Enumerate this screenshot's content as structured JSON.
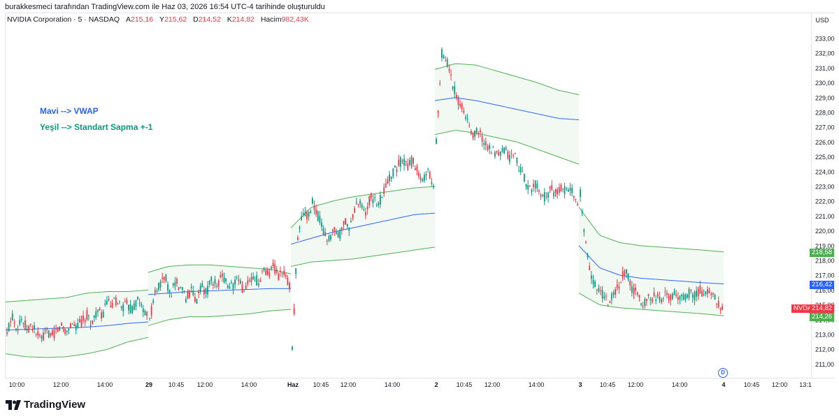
{
  "caption": "burakkesmeci tarafından TradingView.com ile Haz 03, 2026 16:54 UTC-4 tarihinde oluşturuldu",
  "legend": {
    "symbol": "NVIDIA Corporation · 5 · NASDAQ",
    "open_label": "A",
    "open": "215,16",
    "high_label": "Y",
    "high": "215,62",
    "low_label": "D",
    "low": "214,52",
    "close_label": "K",
    "close": "214,82",
    "volume_label": "Hacim",
    "volume": "982,43K"
  },
  "currency": "USD",
  "notes": {
    "vwap": "Mavi --> VWAP",
    "stdev": "Yeşil --> Standart Sapma +-1"
  },
  "brand": "TradingView",
  "price_tags": {
    "upper_band": "218,58",
    "vwap": "216,42",
    "symbol": "NVDA",
    "last": "214,82",
    "lower_band": "214,26"
  },
  "d_button": "D",
  "colors": {
    "up": "#089981",
    "down": "#f23645",
    "vwap": "#2962ff",
    "band": "#4caf50",
    "band_fill": "rgba(76,175,80,0.07)"
  },
  "chart_data": {
    "type": "candlestick",
    "y_ticks": [
      "211,00",
      "212,00",
      "213,00",
      "214,00",
      "215,00",
      "216,00",
      "217,00",
      "218,00",
      "219,00",
      "220,00",
      "221,00",
      "222,00",
      "223,00",
      "224,00",
      "225,00",
      "226,00",
      "227,00",
      "228,00",
      "229,00",
      "230,00",
      "231,00",
      "232,00",
      "233,00"
    ],
    "ylim": [
      210.5,
      233.3
    ],
    "x_ticks": [
      "10:00",
      "12:00",
      "14:00",
      "29",
      "10:45",
      "12:00",
      "14:00",
      "Haz",
      "10:45",
      "12:00",
      "14:00",
      "2",
      "10:45",
      "12:00",
      "14:00",
      "3",
      "10:45",
      "12:00",
      "14:00",
      "4",
      "10:45",
      "12:00",
      "13:1"
    ],
    "sessions": [
      {
        "close_path": [
          213.0,
          214.3,
          213.5,
          214.0,
          213.4,
          213.6,
          213.0,
          212.7,
          213.2,
          212.9,
          213.3,
          213.6,
          213.2,
          213.8,
          213.5,
          213.9,
          214.3,
          213.7,
          214.6,
          214.2,
          215.2,
          214.9,
          215.4,
          214.8,
          215.0,
          214.6,
          215.3,
          214.9,
          214.2
        ],
        "vwap": [
          213.3,
          213.35,
          213.4,
          213.45,
          213.5,
          213.6,
          213.75,
          213.85
        ],
        "upper": [
          215.2,
          215.3,
          215.4,
          215.5,
          215.8,
          215.9,
          215.9,
          216.0
        ],
        "lower": [
          211.7,
          211.5,
          211.45,
          211.5,
          211.7,
          212.0,
          212.5,
          212.8
        ]
      },
      {
        "close_path": [
          214.0,
          215.8,
          216.4,
          216.9,
          215.7,
          216.6,
          216.1,
          215.4,
          216.0,
          215.3,
          216.2,
          215.8,
          216.7,
          216.3,
          217.0,
          216.5,
          216.2,
          216.7,
          216.0,
          216.4,
          216.8,
          216.6,
          217.3,
          217.0,
          217.6,
          216.9,
          217.2,
          216.4
        ],
        "vwap": [
          215.7,
          215.8,
          215.9,
          215.95,
          216.0,
          216.05,
          216.1,
          216.1
        ],
        "upper": [
          217.2,
          217.6,
          217.7,
          217.7,
          217.6,
          217.5,
          217.4,
          217.1
        ],
        "lower": [
          213.6,
          214.0,
          214.2,
          214.2,
          214.3,
          214.4,
          214.6,
          214.7
        ]
      },
      {
        "close_path": [
          212.0,
          219.5,
          221.4,
          221.0,
          222.0,
          220.9,
          220.0,
          219.4,
          220.3,
          219.6,
          220.6,
          220.2,
          221.5,
          222.0,
          221.3,
          222.3,
          221.8,
          222.2,
          223.1,
          223.9,
          224.3,
          224.8,
          224.3,
          224.8,
          224.0,
          223.5,
          223.9,
          223.1
        ],
        "vwap": [
          219.1,
          219.5,
          219.9,
          220.2,
          220.5,
          220.8,
          221.1,
          221.2
        ],
        "upper": [
          220.2,
          221.6,
          222.0,
          222.3,
          222.5,
          222.7,
          222.9,
          223.0
        ],
        "lower": [
          217.6,
          217.9,
          218.0,
          218.1,
          218.3,
          218.5,
          218.7,
          218.9
        ]
      },
      {
        "close_path": [
          226.0,
          232.0,
          231.5,
          230.0,
          229.0,
          228.2,
          227.3,
          226.5,
          226.8,
          226.0,
          225.7,
          225.3,
          225.0,
          225.5,
          224.9,
          225.2,
          224.1,
          223.4,
          222.8,
          223.1,
          222.5,
          222.2,
          222.8,
          222.4,
          223.1,
          222.6,
          222.9,
          221.5
        ],
        "vwap": [
          228.8,
          229.0,
          228.8,
          228.5,
          228.2,
          227.9,
          227.6,
          227.5
        ],
        "upper": [
          230.9,
          231.3,
          231.2,
          230.8,
          230.4,
          230.0,
          229.5,
          229.2
        ],
        "lower": [
          226.5,
          226.8,
          226.6,
          226.3,
          226.0,
          225.5,
          225.0,
          224.5
        ]
      },
      {
        "close_path": [
          222.5,
          219.0,
          216.9,
          216.3,
          215.6,
          215.2,
          215.7,
          216.6,
          217.3,
          216.2,
          215.7,
          215.2,
          215.4,
          215.6,
          215.3,
          215.9,
          215.5,
          215.7,
          215.3,
          215.8,
          215.6,
          216.0,
          215.7,
          215.9,
          215.3,
          214.82
        ],
        "vwap": [
          219.0,
          217.5,
          217.0,
          216.8,
          216.7,
          216.6,
          216.5,
          216.42
        ],
        "upper": [
          221.6,
          219.7,
          219.2,
          219.0,
          218.9,
          218.8,
          218.7,
          218.58
        ],
        "lower": [
          215.8,
          215.0,
          214.8,
          214.7,
          214.6,
          214.5,
          214.4,
          214.26
        ]
      }
    ]
  }
}
